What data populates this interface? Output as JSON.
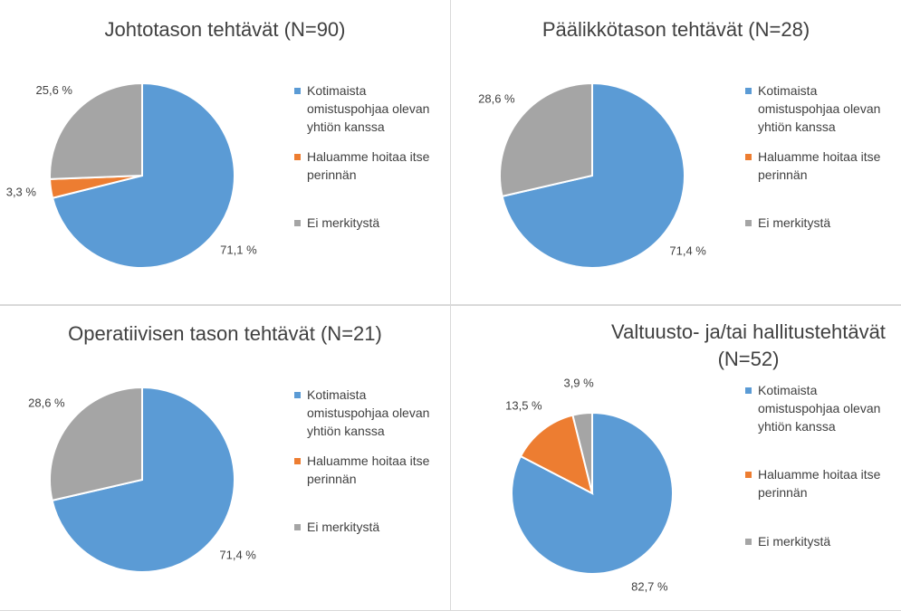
{
  "chart_data": [
    {
      "type": "pie",
      "title": "Johtotason tehtävät (N=90)",
      "categories": [
        "Kotimaista omistuspohjaa olevan yhtiön kanssa",
        "Haluamme hoitaa itse perinnän",
        "Ei merkitystä"
      ],
      "values": [
        71.1,
        3.3,
        25.6
      ],
      "value_labels": [
        "71,1 %",
        "3,3 %",
        "25,6 %"
      ],
      "colors": [
        "#5b9bd5",
        "#ed7d31",
        "#a5a5a5"
      ]
    },
    {
      "type": "pie",
      "title": "Päälikkötason tehtävät (N=28)",
      "categories": [
        "Kotimaista omistuspohjaa olevan yhtiön kanssa",
        "Haluamme hoitaa itse perinnän",
        "Ei merkitystä"
      ],
      "values": [
        71.4,
        0,
        28.6
      ],
      "value_labels": [
        "71,4 %",
        null,
        "28,6 %"
      ],
      "colors": [
        "#5b9bd5",
        "#ed7d31",
        "#a5a5a5"
      ]
    },
    {
      "type": "pie",
      "title": "Operatiivisen tason tehtävät (N=21)",
      "categories": [
        "Kotimaista omistuspohjaa olevan yhtiön kanssa",
        "Haluamme hoitaa itse perinnän",
        "Ei merkitystä"
      ],
      "values": [
        71.4,
        0,
        28.6
      ],
      "value_labels": [
        "71,4 %",
        null,
        "28,6 %"
      ],
      "colors": [
        "#5b9bd5",
        "#ed7d31",
        "#a5a5a5"
      ]
    },
    {
      "type": "pie",
      "title": "Valtuusto- ja/tai hallitustehtävät (N=52)",
      "categories": [
        "Kotimaista omistuspohjaa olevan yhtiön kanssa",
        "Haluamme hoitaa itse perinnän",
        "Ei merkitystä"
      ],
      "values": [
        82.7,
        13.5,
        3.9
      ],
      "value_labels": [
        "82,7 %",
        "13,5 %",
        "3,9 %"
      ],
      "colors": [
        "#5b9bd5",
        "#ed7d31",
        "#a5a5a5"
      ]
    }
  ]
}
